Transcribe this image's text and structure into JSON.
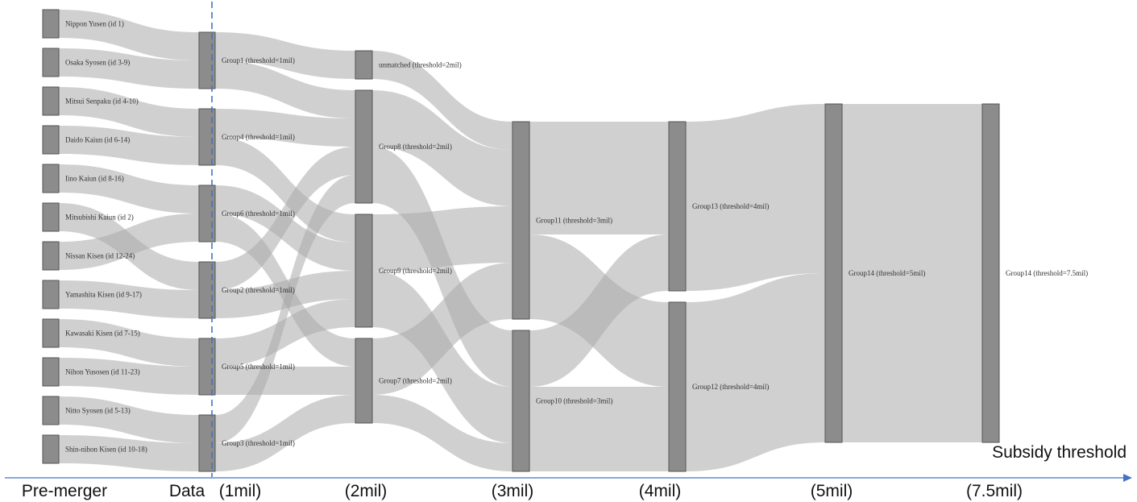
{
  "colors": {
    "node_fill": "#8c8c8c",
    "link": "#a9a9a9",
    "axis": "#4472c4",
    "dashed_line": "#4472c4"
  },
  "axis": {
    "stage_labels": [
      "Pre-merger",
      "Data",
      "(1mil)",
      "(2mil)",
      "(3mil)",
      "(4mil)",
      "(5mil)",
      "(7.5mil)"
    ],
    "end_label": "Subsidy threshold",
    "arrow": "right-arrow"
  },
  "diagram": {
    "type": "sankey",
    "columns": [
      {
        "nodes": [
          {
            "id": "n1",
            "label": "Nippon Yusen (id 1)"
          },
          {
            "id": "n2",
            "label": "Osaka Syosen (id 3-9)"
          },
          {
            "id": "n3",
            "label": "Mitsui Senpaku (id 4-10)"
          },
          {
            "id": "n4",
            "label": "Daido Kaiun (id 6-14)"
          },
          {
            "id": "n5",
            "label": "Iino Kaiun (id 8-16)"
          },
          {
            "id": "n6",
            "label": "Mitsubishi Kaiun (id 2)"
          },
          {
            "id": "n7",
            "label": "Nissan Kisen (id 12-24)"
          },
          {
            "id": "n8",
            "label": "Yamashita Kisen (id 9-17)"
          },
          {
            "id": "n9",
            "label": "Kawasaki Kisen (id 7-15)"
          },
          {
            "id": "n10",
            "label": "Nihon Yusosen (id 11-23)"
          },
          {
            "id": "n11",
            "label": "Nitto Syosen (id 5-13)"
          },
          {
            "id": "n12",
            "label": "Shin-nihon Kisen (id 10-18)"
          }
        ]
      },
      {
        "nodes": [
          {
            "id": "g1",
            "label": "Group1 (threshold=1mil)"
          },
          {
            "id": "g4",
            "label": "Group4 (threshold=1mil)"
          },
          {
            "id": "g6",
            "label": "Group6 (threshold=1mil)"
          },
          {
            "id": "g2",
            "label": "Group2 (threshold=1mil)"
          },
          {
            "id": "g5",
            "label": "Group5 (threshold=1mil)"
          },
          {
            "id": "g3",
            "label": "Group3 (threshold=1mil)"
          }
        ]
      },
      {
        "nodes": [
          {
            "id": "um",
            "label": "unmatched (threshold=2mil)"
          },
          {
            "id": "g8",
            "label": "Group8 (threshold=2mil)"
          },
          {
            "id": "g9",
            "label": "Group9 (threshold=2mil)"
          },
          {
            "id": "g7",
            "label": "Group7 (threshold=2mil)"
          }
        ]
      },
      {
        "nodes": [
          {
            "id": "g11",
            "label": "Group11 (threshold=3mil)"
          },
          {
            "id": "g10",
            "label": "Group10 (threshold=3mil)"
          }
        ]
      },
      {
        "nodes": [
          {
            "id": "g13",
            "label": "Group13 (threshold=4mil)"
          },
          {
            "id": "g12",
            "label": "Group12 (threshold=4mil)"
          }
        ]
      },
      {
        "nodes": [
          {
            "id": "g14a",
            "label": "Group14 (threshold=5mil)"
          }
        ]
      },
      {
        "nodes": [
          {
            "id": "g14b",
            "label": "Group14 (threshold=7.5mil)"
          }
        ]
      }
    ],
    "links": [
      {
        "source": "n1",
        "target": "g1",
        "value": 1
      },
      {
        "source": "n2",
        "target": "g1",
        "value": 1
      },
      {
        "source": "n3",
        "target": "g4",
        "value": 1
      },
      {
        "source": "n4",
        "target": "g4",
        "value": 1
      },
      {
        "source": "n5",
        "target": "g6",
        "value": 1
      },
      {
        "source": "n7",
        "target": "g6",
        "value": 1
      },
      {
        "source": "n6",
        "target": "g2",
        "value": 1
      },
      {
        "source": "n8",
        "target": "g2",
        "value": 1
      },
      {
        "source": "n9",
        "target": "g5",
        "value": 1
      },
      {
        "source": "n10",
        "target": "g5",
        "value": 1
      },
      {
        "source": "n11",
        "target": "g3",
        "value": 1
      },
      {
        "source": "n12",
        "target": "g3",
        "value": 1
      },
      {
        "source": "g1",
        "target": "um",
        "value": 1
      },
      {
        "source": "g1",
        "target": "g8",
        "value": 1
      },
      {
        "source": "g4",
        "target": "g8",
        "value": 1
      },
      {
        "source": "g4",
        "target": "g9",
        "value": 1
      },
      {
        "source": "g6",
        "target": "g9",
        "value": 1
      },
      {
        "source": "g6",
        "target": "g7",
        "value": 1
      },
      {
        "source": "g2",
        "target": "g8",
        "value": 1
      },
      {
        "source": "g2",
        "target": "g9",
        "value": 1
      },
      {
        "source": "g5",
        "target": "g9",
        "value": 1
      },
      {
        "source": "g5",
        "target": "g7",
        "value": 1
      },
      {
        "source": "g3",
        "target": "g8",
        "value": 1
      },
      {
        "source": "g3",
        "target": "g7",
        "value": 1
      },
      {
        "source": "um",
        "target": "g11",
        "value": 1
      },
      {
        "source": "g8",
        "target": "g11",
        "value": 2
      },
      {
        "source": "g8",
        "target": "g10",
        "value": 2
      },
      {
        "source": "g9",
        "target": "g11",
        "value": 2
      },
      {
        "source": "g9",
        "target": "g10",
        "value": 2
      },
      {
        "source": "g7",
        "target": "g11",
        "value": 2
      },
      {
        "source": "g7",
        "target": "g10",
        "value": 1
      },
      {
        "source": "g11",
        "target": "g13",
        "value": 4
      },
      {
        "source": "g11",
        "target": "g12",
        "value": 3
      },
      {
        "source": "g10",
        "target": "g13",
        "value": 2
      },
      {
        "source": "g10",
        "target": "g12",
        "value": 3
      },
      {
        "source": "g13",
        "target": "g14a",
        "value": 6
      },
      {
        "source": "g12",
        "target": "g14a",
        "value": 6
      },
      {
        "source": "g14a",
        "target": "g14b",
        "value": 12
      }
    ]
  }
}
